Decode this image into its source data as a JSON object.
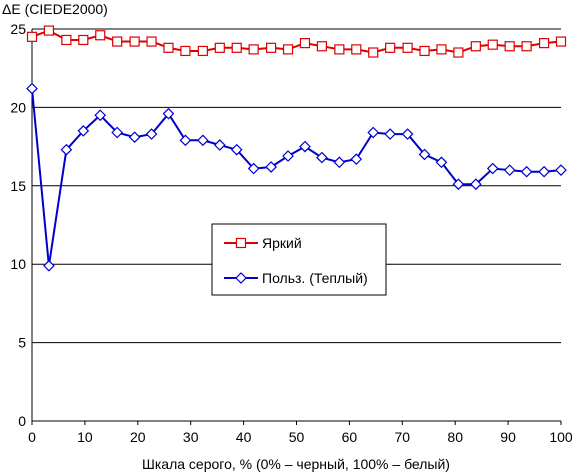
{
  "chart_data": {
    "type": "line",
    "ylabel": "ΔE (CIEDE2000)",
    "xlabel": "Шкала серого, % (0% – черный, 100% – белый)",
    "xlim": [
      0,
      100
    ],
    "ylim": [
      0,
      25
    ],
    "xticks": [
      0,
      10,
      20,
      30,
      40,
      50,
      60,
      70,
      80,
      90,
      100
    ],
    "yticks": [
      0,
      5,
      10,
      15,
      20,
      25
    ],
    "grid": "horizontal",
    "legend_position": "center",
    "series": [
      {
        "name": "Яркий",
        "color": "#dd0000",
        "marker": "square",
        "x": [
          0,
          3.2,
          6.5,
          9.7,
          12.9,
          16.1,
          19.4,
          22.6,
          25.8,
          29.0,
          32.3,
          35.5,
          38.7,
          41.9,
          45.2,
          48.4,
          51.6,
          54.8,
          58.1,
          61.3,
          64.5,
          67.7,
          71.0,
          74.2,
          77.4,
          80.6,
          83.9,
          87.1,
          90.3,
          93.5,
          96.8,
          100
        ],
        "values": [
          24.5,
          24.9,
          24.3,
          24.3,
          24.6,
          24.2,
          24.2,
          24.2,
          23.8,
          23.6,
          23.6,
          23.8,
          23.8,
          23.7,
          23.8,
          23.7,
          24.1,
          23.9,
          23.7,
          23.7,
          23.5,
          23.8,
          23.8,
          23.6,
          23.7,
          23.5,
          23.9,
          24.0,
          23.9,
          23.9,
          24.1,
          24.2
        ]
      },
      {
        "name": "Польз. (Теплый)",
        "color": "#0000cc",
        "marker": "diamond",
        "x": [
          0,
          3.2,
          6.5,
          9.7,
          12.9,
          16.1,
          19.4,
          22.6,
          25.8,
          29.0,
          32.3,
          35.5,
          38.7,
          41.9,
          45.2,
          48.4,
          51.6,
          54.8,
          58.1,
          61.3,
          64.5,
          67.7,
          71.0,
          74.2,
          77.4,
          80.6,
          83.9,
          87.1,
          90.3,
          93.5,
          96.8,
          100
        ],
        "values": [
          21.2,
          9.9,
          17.3,
          18.5,
          19.5,
          18.4,
          18.1,
          18.3,
          19.6,
          17.9,
          17.9,
          17.6,
          17.3,
          16.1,
          16.2,
          16.9,
          17.5,
          16.8,
          16.5,
          16.7,
          18.4,
          18.3,
          18.3,
          17.0,
          16.5,
          15.1,
          15.1,
          16.1,
          16.0,
          15.9,
          15.9,
          16.0
        ]
      }
    ]
  }
}
